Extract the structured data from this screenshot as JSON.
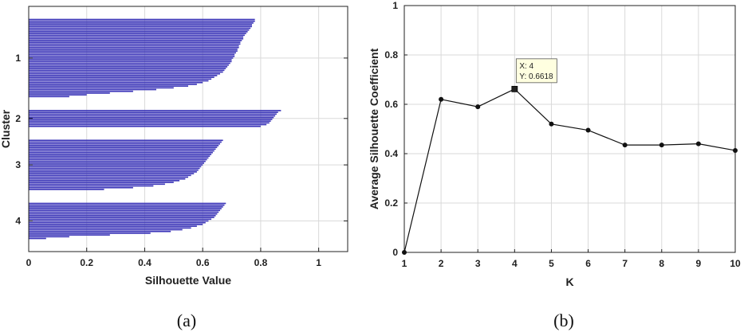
{
  "chart_data": [
    {
      "panel": "a",
      "type": "bar",
      "orientation": "horizontal",
      "caption": "(a)",
      "xlabel": "Silhouette Value",
      "ylabel": "Cluster",
      "xlim": [
        0,
        1.1
      ],
      "x_ticks": [
        0,
        0.2,
        0.4,
        0.6,
        0.8,
        1
      ],
      "x_tick_labels": [
        "0",
        "0.2",
        "0.4",
        "0.6",
        "0.8",
        "1"
      ],
      "grid": true,
      "bar_color": "#3b35b8",
      "clusters": [
        {
          "label": "1",
          "values": [
            0.78,
            0.78,
            0.775,
            0.77,
            0.77,
            0.765,
            0.76,
            0.755,
            0.75,
            0.745,
            0.74,
            0.74,
            0.735,
            0.73,
            0.73,
            0.725,
            0.725,
            0.72,
            0.72,
            0.715,
            0.71,
            0.71,
            0.705,
            0.7,
            0.7,
            0.695,
            0.69,
            0.685,
            0.68,
            0.675,
            0.67,
            0.66,
            0.65,
            0.64,
            0.63,
            0.62,
            0.6,
            0.58,
            0.55,
            0.5,
            0.44,
            0.36,
            0.28,
            0.2,
            0.14
          ]
        },
        {
          "label": "2",
          "values": [
            0.87,
            0.86,
            0.855,
            0.85,
            0.845,
            0.84,
            0.835,
            0.83,
            0.82,
            0.8
          ]
        },
        {
          "label": "3",
          "values": [
            0.67,
            0.665,
            0.66,
            0.655,
            0.65,
            0.645,
            0.64,
            0.635,
            0.63,
            0.625,
            0.62,
            0.615,
            0.61,
            0.605,
            0.6,
            0.595,
            0.59,
            0.585,
            0.58,
            0.57,
            0.56,
            0.55,
            0.54,
            0.52,
            0.5,
            0.47,
            0.43,
            0.36,
            0.26
          ]
        },
        {
          "label": "4",
          "values": [
            0.68,
            0.675,
            0.67,
            0.665,
            0.66,
            0.655,
            0.65,
            0.645,
            0.64,
            0.63,
            0.62,
            0.61,
            0.6,
            0.58,
            0.56,
            0.53,
            0.49,
            0.42,
            0.28,
            0.14,
            0.06
          ]
        }
      ]
    },
    {
      "panel": "b",
      "type": "line",
      "caption": "(b)",
      "xlabel": "K",
      "ylabel": "Average Silhouette Coefficient",
      "xlim": [
        1,
        10
      ],
      "ylim": [
        0,
        1
      ],
      "x_ticks": [
        1,
        2,
        3,
        4,
        5,
        6,
        7,
        8,
        9,
        10
      ],
      "y_ticks": [
        0,
        0.2,
        0.4,
        0.6,
        0.8,
        1
      ],
      "y_tick_labels": [
        "0",
        "0.2",
        "0.4",
        "0.6",
        "0.8",
        "1"
      ],
      "grid": true,
      "line_color": "#111111",
      "series": [
        {
          "x": [
            1,
            2,
            3,
            4,
            5,
            6,
            7,
            8,
            9,
            10
          ],
          "y": [
            0.0,
            0.62,
            0.59,
            0.6618,
            0.52,
            0.495,
            0.435,
            0.435,
            0.44,
            0.413
          ]
        }
      ],
      "annotation": {
        "x_text": "X: 4",
        "y_text": "Y: 0.6618",
        "x": 4,
        "y": 0.6618
      }
    }
  ]
}
